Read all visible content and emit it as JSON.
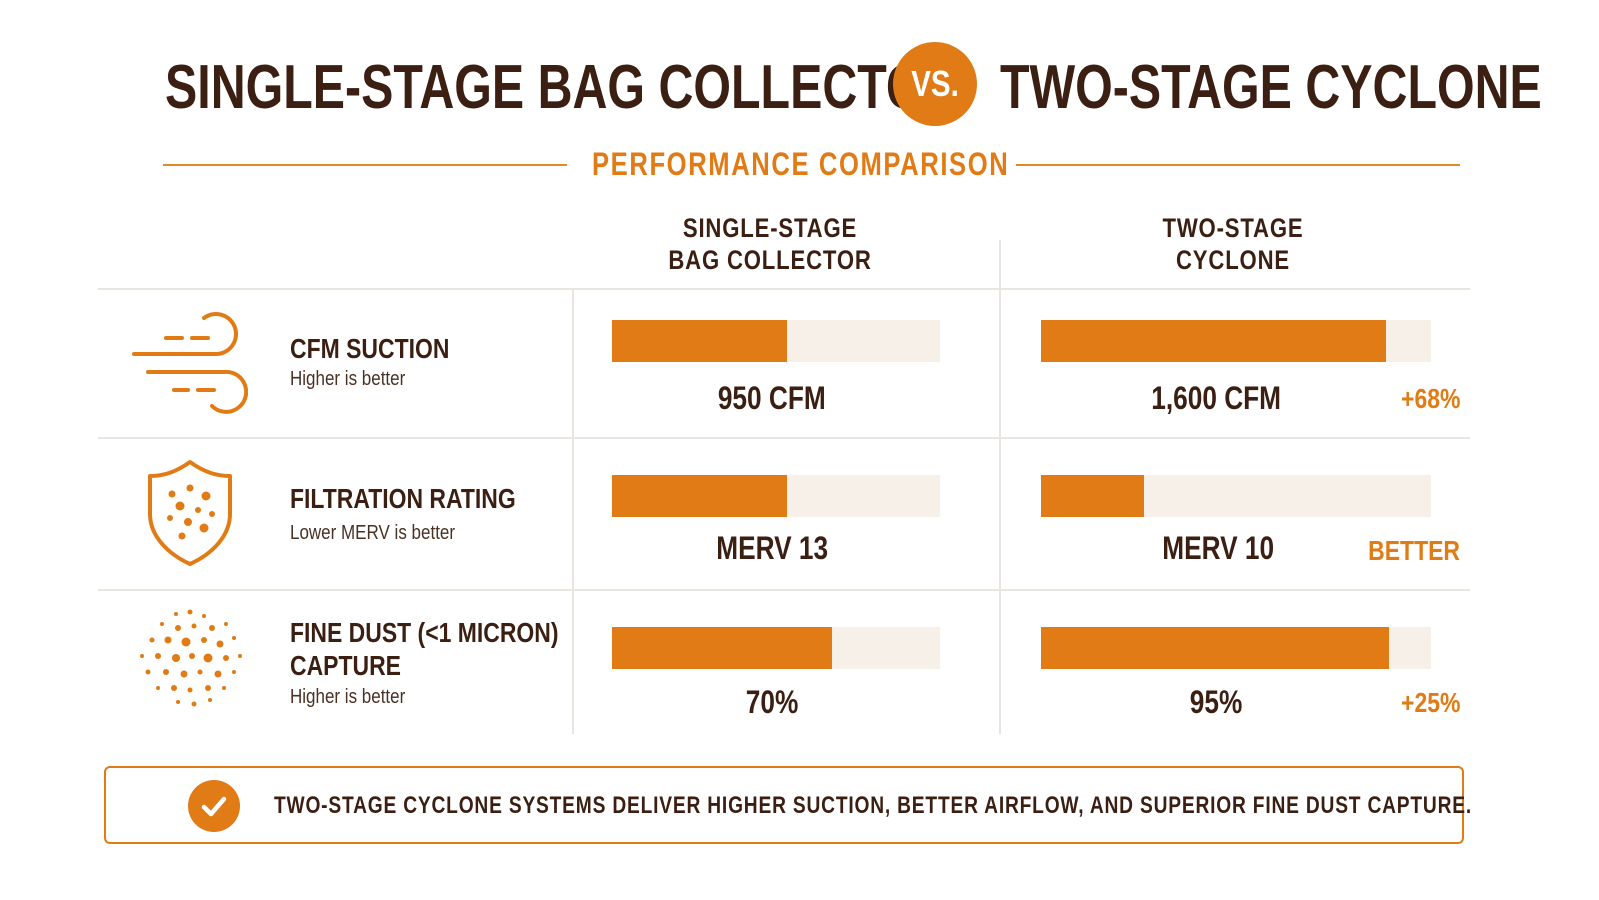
{
  "header": {
    "title_left": "SINGLE-STAGE BAG COLLECTOR",
    "vs": "VS.",
    "title_right": "TWO-STAGE CYCLONE",
    "subtitle": "PERFORMANCE COMPARISON"
  },
  "columns": {
    "a": {
      "line1": "SINGLE-STAGE",
      "line2": "BAG COLLECTOR"
    },
    "b": {
      "line1": "TWO-STAGE",
      "line2": "CYCLONE"
    }
  },
  "rows": [
    {
      "label": "CFM SUCTION",
      "label2": "",
      "hint": "Higher is better",
      "icon": "airflow-icon",
      "a_value": "950 CFM",
      "b_value": "1,600 CFM",
      "delta": "+68%"
    },
    {
      "label": "FILTRATION RATING",
      "label2": "",
      "hint": "Lower MERV is better",
      "icon": "shield-particles-icon",
      "a_value": "MERV 13",
      "b_value": "MERV 10",
      "delta": "BETTER"
    },
    {
      "label": "FINE DUST (<1 MICRON)",
      "label2": "CAPTURE",
      "hint": "Higher is better",
      "icon": "dust-particles-icon",
      "a_value": "70%",
      "b_value": "95%",
      "delta": "+25%"
    }
  ],
  "chart_data": {
    "type": "bar",
    "title": "PERFORMANCE COMPARISON",
    "categories": [
      "CFM SUCTION",
      "FILTRATION RATING",
      "FINE DUST (<1 MICRON) CAPTURE"
    ],
    "series": [
      {
        "name": "SINGLE-STAGE BAG COLLECTOR",
        "fill_fraction": [
          0.535,
          0.535,
          0.67
        ],
        "labels": [
          "950 CFM",
          "MERV 13",
          "70%"
        ]
      },
      {
        "name": "TWO-STAGE CYCLONE",
        "fill_fraction": [
          0.885,
          0.265,
          0.893
        ],
        "labels": [
          "1,600 CFM",
          "MERV 10",
          "95%"
        ]
      }
    ],
    "colors": {
      "fill": "#e07b15",
      "track": "#f6f0e8"
    }
  },
  "footer": {
    "icon": "checkmark-icon",
    "text": "TWO-STAGE CYCLONE SYSTEMS DELIVER HIGHER SUCTION, BETTER AIRFLOW, AND SUPERIOR FINE DUST CAPTURE."
  }
}
